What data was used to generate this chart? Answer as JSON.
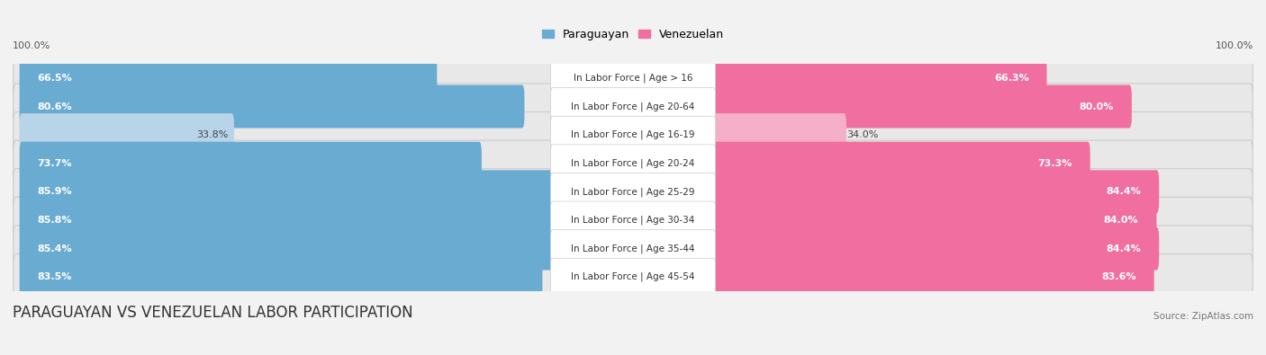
{
  "title": "PARAGUAYAN VS VENEZUELAN LABOR PARTICIPATION",
  "source": "Source: ZipAtlas.com",
  "categories": [
    "In Labor Force | Age > 16",
    "In Labor Force | Age 20-64",
    "In Labor Force | Age 16-19",
    "In Labor Force | Age 20-24",
    "In Labor Force | Age 25-29",
    "In Labor Force | Age 30-34",
    "In Labor Force | Age 35-44",
    "In Labor Force | Age 45-54"
  ],
  "paraguayan_values": [
    66.5,
    80.6,
    33.8,
    73.7,
    85.9,
    85.8,
    85.4,
    83.5
  ],
  "venezuelan_values": [
    66.3,
    80.0,
    34.0,
    73.3,
    84.4,
    84.0,
    84.4,
    83.6
  ],
  "paraguayan_color": "#6aabd2",
  "venezuelan_color": "#f06fa0",
  "paraguayan_color_light": "#b8d4e8",
  "venezuelan_color_light": "#f5afc8",
  "row_bg_color": "#e8e8e8",
  "bg_color": "#f2f2f2",
  "max_value": 100.0,
  "label_fontsize": 8.0,
  "title_fontsize": 12,
  "source_fontsize": 7.5,
  "category_fontsize": 7.5,
  "legend_fontsize": 9
}
